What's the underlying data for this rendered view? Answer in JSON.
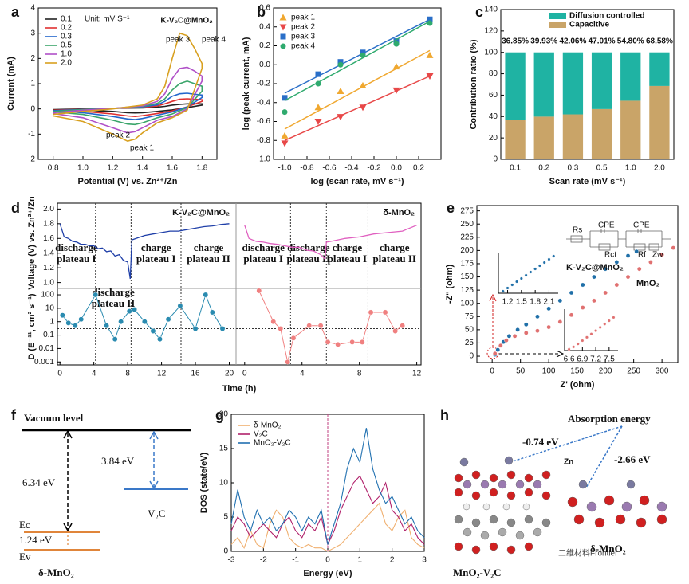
{
  "chart_data": [
    {
      "panel": "a",
      "type": "line",
      "x_label": "Potential (V) vs. Zn²⁺/Zn",
      "y_label": "Current (mA)",
      "annotations": [
        "Unit: mV S⁻¹",
        "K-V₂C@MnO₂",
        "peak 3",
        "peak 4",
        "peak 2",
        "peak 1"
      ],
      "xlim": [
        0.7,
        1.9
      ],
      "xticks": [
        0.8,
        {
          "value": 1,
          "label": "1.0"
        },
        1.2,
        1.4,
        1.6,
        1.8
      ],
      "ylim": [
        -2,
        4
      ],
      "yticks": [
        -2,
        -1,
        0,
        1,
        2,
        3,
        4
      ],
      "legend": "upper left",
      "x": [
        0.8,
        1.0,
        1.2,
        1.4,
        1.5,
        1.55,
        1.6,
        1.65,
        1.7,
        1.75,
        1.8,
        1.8,
        1.7,
        1.6,
        1.5,
        1.4,
        1.35,
        1.3,
        1.2,
        1.0,
        0.8
      ],
      "series": [
        {
          "name": "0.1",
          "color": "#222222",
          "values": [
            -0.03,
            0.0,
            0.02,
            0.04,
            0.07,
            0.1,
            0.15,
            0.18,
            0.2,
            0.2,
            0.2,
            0.15,
            0.05,
            -0.04,
            -0.1,
            -0.15,
            -0.16,
            -0.15,
            -0.1,
            -0.05,
            -0.03
          ]
        },
        {
          "name": "0.2",
          "color": "#e03030",
          "values": [
            -0.05,
            -0.01,
            0.02,
            0.06,
            0.12,
            0.2,
            0.3,
            0.38,
            0.4,
            0.38,
            0.36,
            0.3,
            0.08,
            -0.08,
            -0.18,
            -0.27,
            -0.3,
            -0.28,
            -0.2,
            -0.1,
            -0.06
          ]
        },
        {
          "name": "0.3",
          "color": "#2266cc",
          "values": [
            -0.07,
            -0.02,
            0.02,
            0.08,
            0.16,
            0.3,
            0.5,
            0.6,
            0.62,
            0.58,
            0.55,
            0.45,
            0.08,
            -0.12,
            -0.25,
            -0.38,
            -0.42,
            -0.4,
            -0.3,
            -0.15,
            -0.08
          ]
        },
        {
          "name": "0.5",
          "color": "#3aa56a",
          "values": [
            -0.1,
            -0.03,
            0.02,
            0.1,
            0.22,
            0.4,
            0.75,
            1.0,
            1.1,
            1.0,
            0.9,
            0.7,
            0.05,
            -0.2,
            -0.35,
            -0.55,
            -0.62,
            -0.6,
            -0.45,
            -0.22,
            -0.12
          ]
        },
        {
          "name": "1.0",
          "color": "#b050c8",
          "values": [
            -0.15,
            -0.05,
            0.02,
            0.12,
            0.3,
            0.6,
            1.2,
            1.6,
            1.65,
            1.5,
            1.3,
            1.1,
            0.0,
            -0.3,
            -0.45,
            -0.75,
            -0.9,
            -0.95,
            -0.75,
            -0.35,
            -0.18
          ]
        },
        {
          "name": "2.0",
          "color": "#d8a020",
          "values": [
            -0.22,
            -0.1,
            0.0,
            0.15,
            0.4,
            0.9,
            2.0,
            3.0,
            2.9,
            2.4,
            1.8,
            1.6,
            -0.05,
            -0.35,
            -0.55,
            -0.95,
            -1.2,
            -1.28,
            -1.0,
            -0.5,
            -0.28
          ]
        }
      ]
    },
    {
      "panel": "b",
      "type": "scatter",
      "x_label": "log (scan rate, mV s⁻¹)",
      "y_label": "log (peak current, mA)",
      "xlim": [
        -1.1,
        0.4
      ],
      "xticks": [
        {
          "value": -1,
          "label": "-1.0"
        },
        -0.8,
        -0.6,
        -0.4,
        -0.2,
        {
          "value": 0,
          "label": "0.0"
        },
        0.2
      ],
      "ylim": [
        -1.0,
        0.6
      ],
      "yticks": [
        {
          "value": -1,
          "label": "-1.0"
        },
        -0.8,
        -0.6,
        -0.4,
        -0.2,
        {
          "value": 0,
          "label": "0.0"
        },
        0.2,
        0.4,
        0.6
      ],
      "legend": "upper left",
      "x": [
        -1.0,
        -0.7,
        -0.5,
        -0.3,
        0.0,
        0.3
      ],
      "fit_x": [
        -1.0,
        0.3
      ],
      "series": [
        {
          "name": "peak 1",
          "color": "#f0a830",
          "marker": "triangle-up",
          "values": [
            -0.75,
            -0.45,
            -0.28,
            -0.22,
            -0.02,
            0.1
          ],
          "fit": [
            -0.68,
            0.15
          ]
        },
        {
          "name": "peak 2",
          "color": "#e84848",
          "marker": "triangle-down",
          "values": [
            -0.83,
            -0.6,
            -0.55,
            -0.45,
            -0.27,
            -0.12
          ],
          "fit": [
            -0.8,
            -0.12
          ]
        },
        {
          "name": "peak 3",
          "color": "#2a6fc8",
          "marker": "square",
          "values": [
            -0.35,
            -0.1,
            0.03,
            0.13,
            0.25,
            0.48
          ],
          "fit": [
            -0.3,
            0.48
          ]
        },
        {
          "name": "peak 4",
          "color": "#2faa6e",
          "marker": "circle",
          "values": [
            -0.5,
            -0.2,
            0.0,
            0.1,
            0.22,
            0.44
          ],
          "fit": [
            -0.38,
            0.46
          ]
        }
      ]
    },
    {
      "panel": "c",
      "type": "stacked_bar",
      "x_label": "Scan rate (mV s⁻¹)",
      "y_label": "Contribution ratio (%)",
      "categories": [
        "0.1",
        "0.2",
        "0.3",
        "0.5",
        "1.0",
        "2.0"
      ],
      "ylim": [
        0,
        140
      ],
      "yticks": [
        0,
        20,
        40,
        60,
        80,
        100,
        120,
        140
      ],
      "legend": "upper left",
      "series": [
        {
          "name": "Capacitive",
          "color": "#c9a468",
          "values": [
            36.85,
            39.93,
            42.06,
            47.01,
            54.8,
            68.58
          ],
          "value_labels": [
            "36.85%",
            "39.93%",
            "42.06%",
            "47.01%",
            "54.80%",
            "68.58%"
          ]
        },
        {
          "name": "Diffusion controlled",
          "color": "#1fb3a3",
          "values": [
            63.15,
            60.07,
            57.94,
            52.99,
            45.2,
            31.42
          ]
        }
      ]
    },
    {
      "panel": "d",
      "type": "gitt",
      "x_label": "Time (h)",
      "y_label": "Voltage (V) vs. Zn²⁺/Zn",
      "y2_label": "D (E⁻¹¹, cm² s⁻¹)",
      "ylim": [
        0.92,
        2.08
      ],
      "yticks": [
        {
          "value": 1,
          "label": "1.0"
        },
        1.2,
        1.4,
        1.6,
        1.8,
        {
          "value": 2,
          "label": "2.0"
        }
      ],
      "y2lim": [
        0.0006,
        300
      ],
      "y2ticks": [
        0.001,
        0.01,
        0.1,
        1,
        10,
        100
      ],
      "y2log": true,
      "reference": 0.3,
      "parts": [
        {
          "title": "K-V₂C@MnO₂",
          "xlim": [
            -0.3,
            20.8
          ],
          "xticks": [
            0,
            4,
            8,
            12,
            16,
            20
          ],
          "dividers": [
            4.2,
            8.4,
            14.3
          ],
          "plateaus": [
            [
              "discharge",
              "plateau I"
            ],
            [
              "discharge",
              "plateau II"
            ],
            [
              "charge",
              "plateau I"
            ],
            [
              "charge",
              "plateau II"
            ]
          ],
          "voltage_color": "#1f3fa8",
          "d_color": "#2a8bb0",
          "x": [
            0,
            0.5,
            1,
            1.5,
            2,
            2.5,
            3,
            3.5,
            4,
            4.5,
            5,
            5.5,
            6,
            6.5,
            7,
            7.5,
            8,
            8.3,
            8.5,
            9,
            10,
            11,
            12,
            13,
            14,
            15,
            16,
            17,
            18,
            19,
            20
          ],
          "voltage": [
            1.8,
            1.62,
            1.6,
            1.56,
            1.55,
            1.52,
            1.52,
            1.5,
            1.5,
            1.46,
            1.47,
            1.42,
            1.43,
            1.36,
            1.38,
            1.3,
            1.28,
            1.05,
            1.58,
            1.6,
            1.64,
            1.66,
            1.68,
            1.7,
            1.7,
            1.72,
            1.74,
            1.76,
            1.77,
            1.79,
            1.8
          ],
          "d_x": [
            0.3,
            1,
            1.8,
            2.5,
            4.2,
            5.5,
            6.5,
            7.2,
            8.2,
            8.8,
            10,
            11,
            11.8,
            12.8,
            14.2,
            16,
            17.2,
            18,
            19.2
          ],
          "d_values": [
            3,
            0.8,
            0.5,
            1.5,
            100,
            0.5,
            0.05,
            1,
            6,
            8,
            1,
            0.2,
            0.05,
            1.5,
            15,
            0.3,
            100,
            5,
            0.3
          ]
        },
        {
          "title": "δ-MnO₂",
          "xlim": [
            -0.6,
            12.3
          ],
          "xticks": [
            0,
            4,
            8,
            12
          ],
          "dividers": [
            3.2,
            5.7,
            8.6
          ],
          "plateaus": [
            [
              "discharge",
              "plateau I"
            ],
            [
              "discharge",
              "plateau II"
            ],
            [
              "charge",
              "plateau I"
            ],
            [
              "charge",
              "plateau II"
            ]
          ],
          "voltage_color": "#e060c0",
          "d_color": "#f08080",
          "x": [
            0,
            0.3,
            0.8,
            1.3,
            1.8,
            2.3,
            2.8,
            3.3,
            3.8,
            4.3,
            4.8,
            5.3,
            5.6,
            5.7,
            6,
            7,
            8,
            9,
            10,
            11,
            12
          ],
          "voltage": [
            1.78,
            1.6,
            1.56,
            1.55,
            1.53,
            1.52,
            1.5,
            1.48,
            1.48,
            1.44,
            1.43,
            1.38,
            1.32,
            1.55,
            1.56,
            1.6,
            1.62,
            1.66,
            1.68,
            1.7,
            1.78
          ],
          "d_x": [
            1,
            2,
            2.5,
            3,
            3.4,
            4.5,
            5.3,
            5.8,
            6.5,
            7.5,
            8.2,
            8.8,
            9.8,
            10.5,
            11
          ],
          "d_values": [
            200,
            1,
            0.3,
            0.001,
            0.06,
            0.5,
            0.5,
            0.03,
            0.02,
            0.03,
            0.03,
            5,
            5,
            0.2,
            0.5
          ]
        }
      ]
    },
    {
      "panel": "e",
      "type": "scatter",
      "x_label": "Z' (ohm)",
      "y_label": "-Z'' (ohm)",
      "xlim": [
        -27,
        328
      ],
      "xticks": [
        0,
        50,
        100,
        150,
        200,
        250,
        300
      ],
      "ylim": [
        -12,
        285
      ],
      "yticks": [
        0,
        25,
        50,
        75,
        100,
        125,
        150,
        175,
        200,
        225,
        250,
        275
      ],
      "circuit": [
        "Rs",
        "CPE",
        "Rct",
        "CPE",
        "Rf",
        "Zw"
      ],
      "series": [
        {
          "name": "K-V₂C@MnO₂",
          "color": "#1f6fa8",
          "x": [
            5,
            10,
            15,
            20,
            30,
            45,
            60,
            80,
            100,
            120,
            140,
            160,
            180,
            200,
            220,
            240,
            255
          ],
          "values": [
            3,
            12,
            20,
            27,
            38,
            50,
            60,
            75,
            90,
            105,
            120,
            135,
            150,
            165,
            178,
            190,
            198
          ]
        },
        {
          "name": "MnO₂",
          "color": "#e07070",
          "x": [
            5,
            15,
            25,
            40,
            60,
            80,
            100,
            120,
            140,
            160,
            180,
            200,
            220,
            240,
            260,
            280,
            300,
            320
          ],
          "values": [
            5,
            20,
            30,
            38,
            44,
            48,
            55,
            65,
            78,
            92,
            105,
            120,
            135,
            150,
            165,
            178,
            192,
            205
          ]
        }
      ]
    },
    {
      "type": "scatter",
      "xlim": [
        1.0,
        2.3
      ],
      "xticks": [
        1.2,
        1.5,
        1.8,
        2.1
      ],
      "ylim": [
        0,
        10
      ],
      "series": [
        {
          "color": "#1f6fa8",
          "x": [
            1.1,
            1.2,
            1.3,
            1.4,
            1.5,
            1.6,
            1.7,
            1.8,
            1.9,
            2.0,
            2.1,
            2.2
          ],
          "values": [
            0.5,
            1.3,
            2.1,
            2.9,
            3.7,
            4.5,
            5.3,
            6.1,
            6.9,
            7.7,
            8.5,
            9.3
          ]
        }
      ]
    },
    {
      "type": "scatter",
      "xlim": [
        6.5,
        7.7
      ],
      "xticks": [
        6.6,
        6.9,
        7.2,
        7.5
      ],
      "ylim": [
        0,
        10
      ],
      "series": [
        {
          "color": "#e07070",
          "x": [
            6.6,
            6.7,
            6.8,
            6.9,
            7.0,
            7.1,
            7.2,
            7.3,
            7.4,
            7.5,
            7.6
          ],
          "values": [
            0.3,
            0.9,
            1.6,
            2.4,
            3.2,
            4.0,
            4.8,
            5.6,
            6.4,
            7.2,
            8.0
          ]
        }
      ]
    },
    {
      "panel": "g",
      "type": "line",
      "x_label": "Energy (eV)",
      "y_label": "DOS (state/eV)",
      "reference_x": 0,
      "xlim": [
        -3,
        3
      ],
      "xticks": [
        -3,
        -2,
        -1,
        0,
        1,
        2,
        3
      ],
      "ylim": [
        0,
        20
      ],
      "yticks": [
        0,
        5,
        10,
        15,
        20
      ],
      "legend": "upper left",
      "x": [
        -3,
        -2.8,
        -2.6,
        -2.4,
        -2.2,
        -2,
        -1.8,
        -1.6,
        -1.4,
        -1.2,
        -1,
        -0.8,
        -0.6,
        -0.4,
        -0.2,
        0,
        0.2,
        0.4,
        0.6,
        0.8,
        1,
        1.2,
        1.4,
        1.6,
        1.8,
        2,
        2.2,
        2.4,
        2.6,
        2.8,
        3
      ],
      "series": [
        {
          "name": "δ-MnO₂",
          "color": "#f0b070",
          "values": [
            1,
            2,
            0.5,
            3,
            1,
            0.5,
            4,
            6,
            5,
            2,
            1,
            0.5,
            1,
            0.5,
            0.5,
            0,
            0.5,
            1,
            2,
            3,
            4,
            5,
            6,
            7,
            4,
            3,
            5,
            6,
            2,
            1,
            0.5
          ]
        },
        {
          "name": "V₂C",
          "color": "#b0206a",
          "values": [
            3,
            5,
            4,
            2,
            3,
            4,
            3,
            2,
            4,
            5,
            3,
            2,
            4,
            3,
            5,
            1,
            3,
            6,
            8,
            10,
            11,
            9,
            7,
            8,
            10,
            6,
            5,
            3,
            4,
            2,
            1
          ]
        },
        {
          "name": "MnO₂-V₂C",
          "color": "#2070b0",
          "values": [
            4,
            9,
            5,
            3,
            6,
            4,
            5,
            3,
            4,
            6,
            5,
            3,
            5,
            4,
            6,
            1,
            4,
            7,
            12,
            15,
            13,
            18,
            12,
            9,
            7,
            8,
            6,
            4,
            5,
            3,
            2
          ]
        }
      ]
    }
  ],
  "diagram_f": {
    "panel": "f",
    "vacuum_level": "Vacuum level",
    "gap_mno2": "6.34 eV",
    "gap_v2c": "3.84 eV",
    "band_gap": "1.24 eV",
    "ec": "Ec",
    "ev": "Ev",
    "mno2": "δ-MnO₂",
    "v2c": "V₂C"
  },
  "image_h": {
    "panel": "h",
    "title": "Absorption energy",
    "energy_left": "-0.74 eV",
    "energy_right": "-2.66 eV",
    "ion": "Zn",
    "right_label": "δ-MnO₂",
    "left_label": "MnO₂-V₂C",
    "watermark": "二维材料Frontier"
  }
}
